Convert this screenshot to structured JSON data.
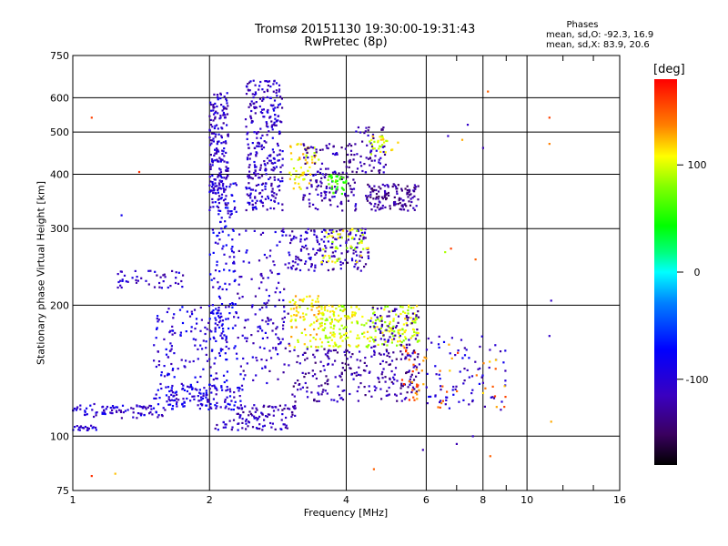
{
  "header": {
    "title_line1": "Tromsø 20151130 19:30:00-19:31:43",
    "title_line2": "RwPretec (8p)",
    "stats_title": "Phases",
    "stats_o": "mean, sd,O: -92.3, 16.9",
    "stats_x": "mean, sd,X: 83.9, 20.6"
  },
  "colorbar": {
    "unit": "[deg]",
    "range": [
      -180,
      180
    ],
    "ticks": [
      {
        "v": 100,
        "label": "100"
      },
      {
        "v": 0,
        "label": "0"
      },
      {
        "v": -100,
        "label": "-100"
      }
    ]
  },
  "chart_data": {
    "type": "scatter",
    "title": "Tromsø 20151130 19:30:00-19:31:43",
    "subtitle": "RwPretec (8p)",
    "xlabel": "Frequency [MHz]",
    "ylabel": "Stationary phase Virtual Height [km]",
    "x_scale": "log",
    "y_scale": "log",
    "xlim": [
      1,
      16
    ],
    "ylim": [
      75,
      750
    ],
    "x_ticks": [
      {
        "v": 1,
        "label": "1"
      },
      {
        "v": 2,
        "label": "2"
      },
      {
        "v": 4,
        "label": "4"
      },
      {
        "v": 6,
        "label": "6"
      },
      {
        "v": 8,
        "label": "8"
      },
      {
        "v": 10,
        "label": "10"
      },
      {
        "v": 16,
        "label": "16"
      }
    ],
    "x_gridlines": [
      2,
      4,
      6,
      8,
      10
    ],
    "y_ticks": [
      {
        "v": 75,
        "label": "75"
      },
      {
        "v": 100,
        "label": "100"
      },
      {
        "v": 200,
        "label": "200"
      },
      {
        "v": 300,
        "label": "300"
      },
      {
        "v": 400,
        "label": "400"
      },
      {
        "v": 500,
        "label": "500"
      },
      {
        "v": 600,
        "label": "600"
      },
      {
        "v": 750,
        "label": "750"
      }
    ],
    "y_gridlines": [
      100,
      200,
      300,
      400,
      500,
      600
    ],
    "color_scale": "rainbow phase (deg)",
    "clusters": [
      {
        "x": [
          1.0,
          1.13
        ],
        "y": [
          103,
          106
        ],
        "phase": -100,
        "n": 22
      },
      {
        "x": [
          1.0,
          1.6
        ],
        "y": [
          110,
          119
        ],
        "phase": -105,
        "n": 90
      },
      {
        "x": [
          1.6,
          2.4
        ],
        "y": [
          115,
          130
        ],
        "phase": -100,
        "n": 110
      },
      {
        "x": [
          2.05,
          3.0
        ],
        "y": [
          103,
          110
        ],
        "phase": -110,
        "n": 50
      },
      {
        "x": [
          2.3,
          3.1
        ],
        "y": [
          110,
          118
        ],
        "phase": -120,
        "n": 60
      },
      {
        "x": [
          1.5,
          2.2
        ],
        "y": [
          120,
          200
        ],
        "phase": -100,
        "n": 170
      },
      {
        "x": [
          2.0,
          2.3
        ],
        "y": [
          150,
          400
        ],
        "phase": -95,
        "n": 160
      },
      {
        "x": [
          2.0,
          2.2
        ],
        "y": [
          330,
          620
        ],
        "phase": -110,
        "n": 200
      },
      {
        "x": [
          2.4,
          2.9
        ],
        "y": [
          330,
          660
        ],
        "phase": -110,
        "n": 310
      },
      {
        "x": [
          2.3,
          3.0
        ],
        "y": [
          130,
          300
        ],
        "phase": -110,
        "n": 150
      },
      {
        "x": [
          1.25,
          1.75
        ],
        "y": [
          218,
          240
        ],
        "phase": -110,
        "n": 45
      },
      {
        "x": [
          3.0,
          3.5
        ],
        "y": [
          370,
          470
        ],
        "phase": 110,
        "n": 60
      },
      {
        "x": [
          3.2,
          4.2
        ],
        "y": [
          330,
          470
        ],
        "phase": -120,
        "n": 150
      },
      {
        "x": [
          3.6,
          4.0
        ],
        "y": [
          360,
          400
        ],
        "phase": 60,
        "n": 35
      },
      {
        "x": [
          4.2,
          4.9
        ],
        "y": [
          400,
          520
        ],
        "phase": -120,
        "n": 60
      },
      {
        "x": [
          4.5,
          5.2
        ],
        "y": [
          440,
          490
        ],
        "phase": 110,
        "n": 30
      },
      {
        "x": [
          4.4,
          5.8
        ],
        "y": [
          330,
          380
        ],
        "phase": -130,
        "n": 130
      },
      {
        "x": [
          3.0,
          4.5
        ],
        "y": [
          240,
          300
        ],
        "phase": -115,
        "n": 170
      },
      {
        "x": [
          3.5,
          4.5
        ],
        "y": [
          250,
          300
        ],
        "phase": 100,
        "n": 50
      },
      {
        "x": [
          3.0,
          3.5
        ],
        "y": [
          160,
          210
        ],
        "phase": 115,
        "n": 80
      },
      {
        "x": [
          3.5,
          4.0
        ],
        "y": [
          160,
          200
        ],
        "phase": 100,
        "n": 100
      },
      {
        "x": [
          4.0,
          5.8
        ],
        "y": [
          160,
          200
        ],
        "phase": 100,
        "n": 160
      },
      {
        "x": [
          4.5,
          5.8
        ],
        "y": [
          150,
          200
        ],
        "phase": -120,
        "n": 80
      },
      {
        "x": [
          3.0,
          5.8
        ],
        "y": [
          120,
          160
        ],
        "phase": -125,
        "n": 230
      },
      {
        "x": [
          5.3,
          6.0
        ],
        "y": [
          120,
          160
        ],
        "phase": 150,
        "n": 30
      },
      {
        "x": [
          6.0,
          9.0
        ],
        "y": [
          115,
          170
        ],
        "phase": -105,
        "n": 80
      },
      {
        "x": [
          6.0,
          9.0
        ],
        "y": [
          115,
          165
        ],
        "phase": 140,
        "n": 25
      }
    ],
    "sparse_points": [
      [
        1.1,
        540,
        160
      ],
      [
        1.4,
        405,
        165
      ],
      [
        1.28,
        322,
        -90
      ],
      [
        1.1,
        81,
        165
      ],
      [
        1.24,
        82,
        125
      ],
      [
        1.55,
        225,
        -110
      ],
      [
        8.2,
        620,
        150
      ],
      [
        7.4,
        520,
        -110
      ],
      [
        7.2,
        480,
        130
      ],
      [
        8.0,
        460,
        -120
      ],
      [
        6.7,
        490,
        -110
      ],
      [
        7.7,
        255,
        150
      ],
      [
        6.8,
        270,
        160
      ],
      [
        11.2,
        540,
        160
      ],
      [
        11.2,
        470,
        140
      ],
      [
        11.3,
        205,
        -110
      ],
      [
        11.2,
        170,
        -110
      ],
      [
        11.3,
        108,
        130
      ],
      [
        7.6,
        100,
        -110
      ],
      [
        7.0,
        96,
        -120
      ],
      [
        8.3,
        90,
        150
      ],
      [
        4.6,
        84,
        150
      ],
      [
        6.6,
        265,
        90
      ],
      [
        5.9,
        93,
        -120
      ],
      [
        8.8,
        120,
        -100
      ]
    ]
  }
}
